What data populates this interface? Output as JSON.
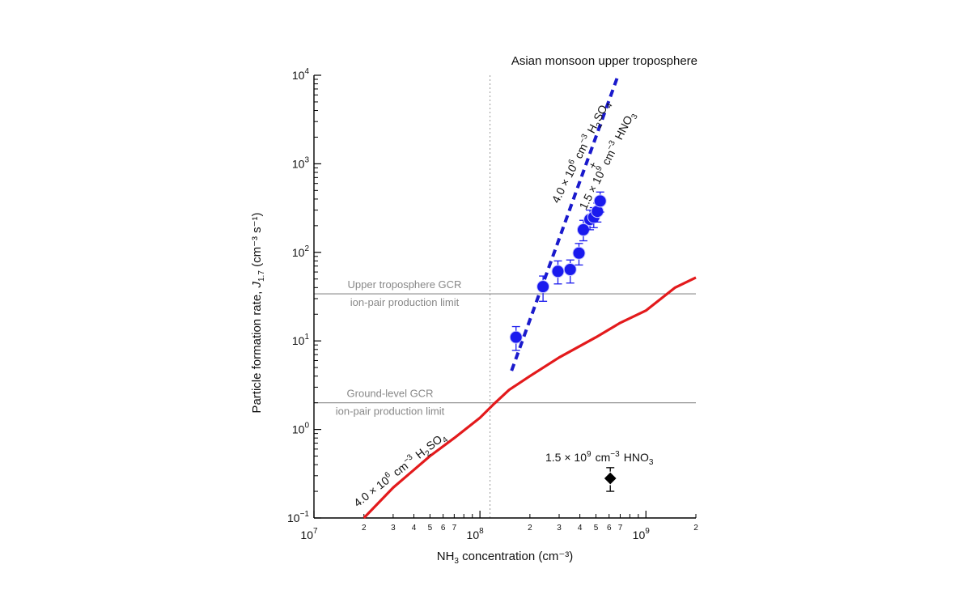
{
  "chart_data": {
    "type": "scatter",
    "title": "Asian monsoon upper troposphere",
    "xlabel": {
      "pre": "NH",
      "sub": "3",
      "post": " concentration (cm⁻³)"
    },
    "ylabel": {
      "pre": "Particle formation rate, ",
      "italic": "J",
      "sub": "1.7",
      "post": " (cm⁻³ s⁻¹)"
    },
    "x_scale": "log",
    "y_scale": "log",
    "xlim": [
      10000000.0,
      2000000000.0
    ],
    "ylim": [
      0.1,
      10000
    ],
    "x_major_ticks": [
      {
        "value": 10000000.0,
        "base": "10",
        "exp": "7"
      },
      {
        "value": 100000000.0,
        "base": "10",
        "exp": "8"
      },
      {
        "value": 1000000000.0,
        "base": "10",
        "exp": "9"
      }
    ],
    "x_minor_labels": [
      {
        "value": 20000000.0,
        "label": "2"
      },
      {
        "value": 30000000.0,
        "label": "3"
      },
      {
        "value": 40000000.0,
        "label": "4"
      },
      {
        "value": 50000000.0,
        "label": "5"
      },
      {
        "value": 60000000.0,
        "label": "6"
      },
      {
        "value": 70000000.0,
        "label": "7"
      },
      {
        "value": 200000000.0,
        "label": "2"
      },
      {
        "value": 300000000.0,
        "label": "3"
      },
      {
        "value": 400000000.0,
        "label": "4"
      },
      {
        "value": 500000000.0,
        "label": "5"
      },
      {
        "value": 600000000.0,
        "label": "6"
      },
      {
        "value": 700000000.0,
        "label": "7"
      },
      {
        "value": 2000000000.0,
        "label": "2"
      }
    ],
    "y_major_ticks": [
      {
        "value": 0.1,
        "base": "10",
        "exp": "−1"
      },
      {
        "value": 1,
        "base": "10",
        "exp": "0"
      },
      {
        "value": 10,
        "base": "10",
        "exp": "1"
      },
      {
        "value": 100,
        "base": "10",
        "exp": "2"
      },
      {
        "value": 1000,
        "base": "10",
        "exp": "3"
      },
      {
        "value": 10000,
        "base": "10",
        "exp": "4"
      }
    ],
    "vertical_reference_x": 115000000.0,
    "reference_lines": [
      {
        "y": 34,
        "label_top": "Upper troposphere GCR",
        "label_bottom": "ion-pair production limit"
      },
      {
        "y": 2,
        "label_top": "Ground-level GCR",
        "label_bottom": "ion-pair production limit"
      }
    ],
    "series": [
      {
        "kind": "line",
        "color": "#e31a1c",
        "label": {
          "a": "4.0 × 10",
          "a_exp": "6",
          "b": " cm",
          "b_exp": "−3",
          "c": "  H",
          "c_sub1": "2",
          "d": "SO",
          "d_sub": "4"
        },
        "x": [
          20000000.0,
          30000000.0,
          50000000.0,
          70000000.0,
          100000000.0,
          120000000.0,
          150000000.0,
          200000000.0,
          300000000.0,
          500000000.0,
          700000000.0,
          1000000000.0,
          1500000000.0,
          2000000000.0
        ],
        "y": [
          0.1,
          0.22,
          0.5,
          0.8,
          1.35,
          1.9,
          2.8,
          4.0,
          6.5,
          11,
          16,
          22,
          40,
          52
        ]
      },
      {
        "kind": "dashed-line",
        "color": "#1a1acc",
        "label1": {
          "a": "4.0 × 10",
          "a_exp": "6",
          "b": " cm",
          "b_exp": "−3",
          "c": "  H",
          "c_sub": "2",
          "d": "SO",
          "d_sub": "4"
        },
        "label_plus": "+",
        "label2": {
          "a": "1.5 × 10",
          "a_exp": "9",
          "b": " cm",
          "b_exp": "−3",
          "c": "  HNO",
          "c_sub": "3"
        },
        "x": [
          155000000.0,
          680000000.0
        ],
        "y": [
          4.6,
          10000
        ]
      },
      {
        "kind": "points",
        "color": "#1a1aee",
        "x": [
          165000000.0,
          240000000.0,
          295000000.0,
          350000000.0,
          395000000.0,
          420000000.0,
          460000000.0,
          485000000.0,
          510000000.0,
          530000000.0
        ],
        "y": [
          11,
          41,
          61,
          64,
          98,
          180,
          235,
          250,
          290,
          380
        ],
        "y_low": [
          7.8,
          28,
          44,
          45,
          72,
          135,
          180,
          190,
          220,
          285
        ],
        "y_high": [
          14.5,
          54,
          80,
          82,
          126,
          230,
          300,
          320,
          360,
          480
        ]
      },
      {
        "kind": "diamond",
        "color": "#000000",
        "label": {
          "a": "1.5 × 10",
          "a_exp": "9",
          "b": " cm",
          "b_exp": "−3",
          "c": "  HNO",
          "c_sub": "3"
        },
        "x": [
          610000000.0
        ],
        "y": [
          0.28
        ],
        "y_low": [
          0.2
        ],
        "y_high": [
          0.37
        ]
      }
    ]
  }
}
